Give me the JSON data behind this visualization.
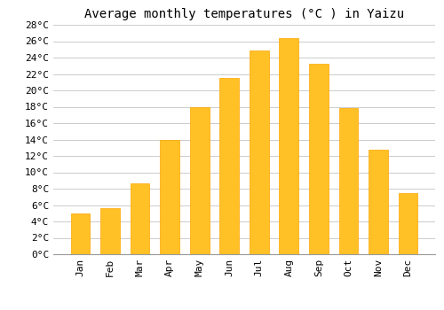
{
  "title": "Average monthly temperatures (°C ) in Yaizu",
  "months": [
    "Jan",
    "Feb",
    "Mar",
    "Apr",
    "May",
    "Jun",
    "Jul",
    "Aug",
    "Sep",
    "Oct",
    "Nov",
    "Dec"
  ],
  "values": [
    5.0,
    5.6,
    8.7,
    14.0,
    17.9,
    21.5,
    24.9,
    26.4,
    23.2,
    17.8,
    12.8,
    7.5
  ],
  "bar_color": "#FFC125",
  "bar_edge_color": "#FFA500",
  "background_color": "#FFFFFF",
  "grid_color": "#CCCCCC",
  "ylim": [
    0,
    28
  ],
  "yticks": [
    0,
    2,
    4,
    6,
    8,
    10,
    12,
    14,
    16,
    18,
    20,
    22,
    24,
    26,
    28
  ],
  "title_fontsize": 10,
  "tick_fontsize": 8,
  "font_family": "monospace"
}
